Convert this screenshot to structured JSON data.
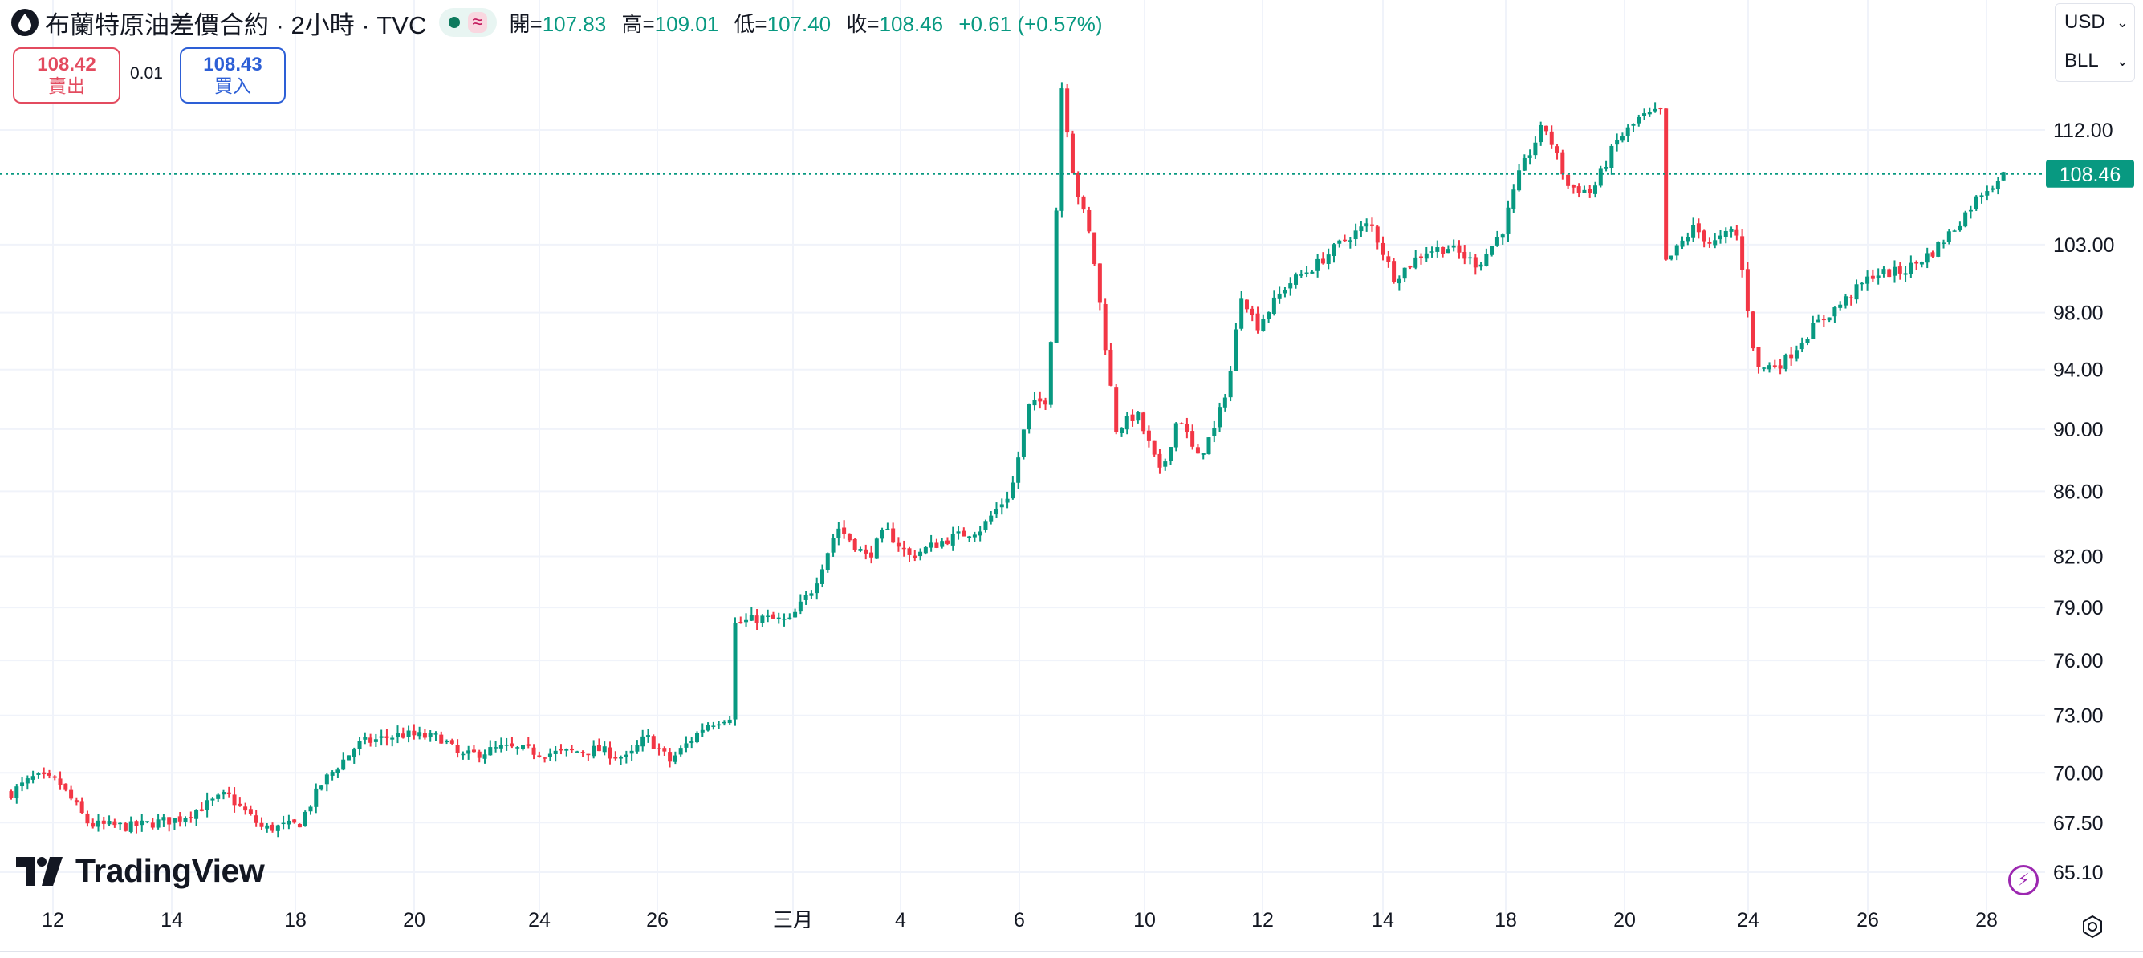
{
  "header": {
    "symbol_title": "布蘭特原油差價合約 · 2小時 · TVC",
    "ohlc": [
      {
        "key": "開=",
        "value": "107.83"
      },
      {
        "key": "高=",
        "value": "109.01"
      },
      {
        "key": "低=",
        "value": "107.40"
      },
      {
        "key": "收=",
        "value": "108.46"
      }
    ],
    "change": "+0.61 (+0.57%)"
  },
  "trade": {
    "sell_price": "108.42",
    "sell_label": "賣出",
    "spread": "0.01",
    "buy_price": "108.43",
    "buy_label": "買入"
  },
  "selectors": {
    "currency": "USD",
    "unit": "BLL"
  },
  "branding": {
    "logo_text": "TradingView"
  },
  "colors": {
    "up": "#089981",
    "down": "#f23645",
    "last_price_bg": "#089981",
    "grid": "#f0f3fa"
  },
  "chart_data": {
    "type": "candlestick",
    "scale": "log",
    "price_ticks": [
      "112.00",
      "103.00",
      "98.00",
      "94.00",
      "90.00",
      "86.00",
      "82.00",
      "79.00",
      "76.00",
      "73.00",
      "70.00",
      "67.50",
      "65.10"
    ],
    "time_ticks": [
      "12",
      "14",
      "18",
      "20",
      "24",
      "26",
      "三月",
      "4",
      "6",
      "10",
      "12",
      "14",
      "18",
      "20",
      "24",
      "26",
      "28"
    ],
    "last_price": "108.46",
    "close_path": [
      {
        "t": 0.0,
        "v": 69.0
      },
      {
        "t": 0.4,
        "v": 69.8
      },
      {
        "t": 0.8,
        "v": 69.5
      },
      {
        "t": 1.3,
        "v": 67.4
      },
      {
        "t": 2.0,
        "v": 67.3
      },
      {
        "t": 2.8,
        "v": 67.7
      },
      {
        "t": 3.6,
        "v": 68.9
      },
      {
        "t": 4.2,
        "v": 67.2
      },
      {
        "t": 4.8,
        "v": 67.4
      },
      {
        "t": 5.2,
        "v": 69.5
      },
      {
        "t": 5.8,
        "v": 71.5
      },
      {
        "t": 6.5,
        "v": 72.0
      },
      {
        "t": 7.2,
        "v": 71.8
      },
      {
        "t": 7.5,
        "v": 70.8
      },
      {
        "t": 8.2,
        "v": 71.3
      },
      {
        "t": 9.0,
        "v": 71.0
      },
      {
        "t": 9.8,
        "v": 71.2
      },
      {
        "t": 10.3,
        "v": 70.7
      },
      {
        "t": 10.6,
        "v": 71.9
      },
      {
        "t": 11.0,
        "v": 70.6
      },
      {
        "t": 11.6,
        "v": 72.5
      },
      {
        "t": 12.0,
        "v": 73.0
      },
      {
        "t": 12.05,
        "v": 78.0
      },
      {
        "t": 12.5,
        "v": 78.4
      },
      {
        "t": 13.0,
        "v": 78.2
      },
      {
        "t": 13.4,
        "v": 80.2
      },
      {
        "t": 13.8,
        "v": 83.8
      },
      {
        "t": 14.3,
        "v": 81.9
      },
      {
        "t": 14.6,
        "v": 83.6
      },
      {
        "t": 15.0,
        "v": 82.0
      },
      {
        "t": 15.6,
        "v": 83.0
      },
      {
        "t": 16.2,
        "v": 83.7
      },
      {
        "t": 16.7,
        "v": 86.0
      },
      {
        "t": 17.0,
        "v": 91.5
      },
      {
        "t": 17.3,
        "v": 92.0
      },
      {
        "t": 17.42,
        "v": 100.0
      },
      {
        "t": 17.52,
        "v": 116.5
      },
      {
        "t": 17.75,
        "v": 108.0
      },
      {
        "t": 18.05,
        "v": 103.0
      },
      {
        "t": 18.2,
        "v": 98.0
      },
      {
        "t": 18.45,
        "v": 90.0
      },
      {
        "t": 18.8,
        "v": 91.0
      },
      {
        "t": 19.2,
        "v": 87.0
      },
      {
        "t": 19.5,
        "v": 91.0
      },
      {
        "t": 19.8,
        "v": 88.0
      },
      {
        "t": 20.1,
        "v": 90.0
      },
      {
        "t": 20.35,
        "v": 93.5
      },
      {
        "t": 20.55,
        "v": 99.5
      },
      {
        "t": 20.8,
        "v": 97.0
      },
      {
        "t": 21.3,
        "v": 100.0
      },
      {
        "t": 21.8,
        "v": 101.5
      },
      {
        "t": 22.3,
        "v": 103.5
      },
      {
        "t": 22.7,
        "v": 104.6
      },
      {
        "t": 23.1,
        "v": 100.5
      },
      {
        "t": 23.6,
        "v": 102.5
      },
      {
        "t": 24.0,
        "v": 102.8
      },
      {
        "t": 24.5,
        "v": 101.5
      },
      {
        "t": 24.9,
        "v": 104.0
      },
      {
        "t": 25.2,
        "v": 108.6
      },
      {
        "t": 25.6,
        "v": 112.5
      },
      {
        "t": 26.0,
        "v": 107.5
      },
      {
        "t": 26.4,
        "v": 107.0
      },
      {
        "t": 26.8,
        "v": 111.0
      },
      {
        "t": 27.2,
        "v": 113.0
      },
      {
        "t": 27.55,
        "v": 113.5
      },
      {
        "t": 27.62,
        "v": 101.5
      },
      {
        "t": 28.1,
        "v": 104.3
      },
      {
        "t": 28.4,
        "v": 103.0
      },
      {
        "t": 28.8,
        "v": 104.2
      },
      {
        "t": 29.15,
        "v": 94.0
      },
      {
        "t": 29.6,
        "v": 94.5
      },
      {
        "t": 30.1,
        "v": 97.0
      },
      {
        "t": 30.6,
        "v": 98.8
      },
      {
        "t": 31.1,
        "v": 100.8
      },
      {
        "t": 31.6,
        "v": 101.0
      },
      {
        "t": 32.1,
        "v": 102.5
      },
      {
        "t": 32.5,
        "v": 104.5
      },
      {
        "t": 32.9,
        "v": 107.0
      },
      {
        "t": 33.3,
        "v": 108.46
      }
    ]
  }
}
